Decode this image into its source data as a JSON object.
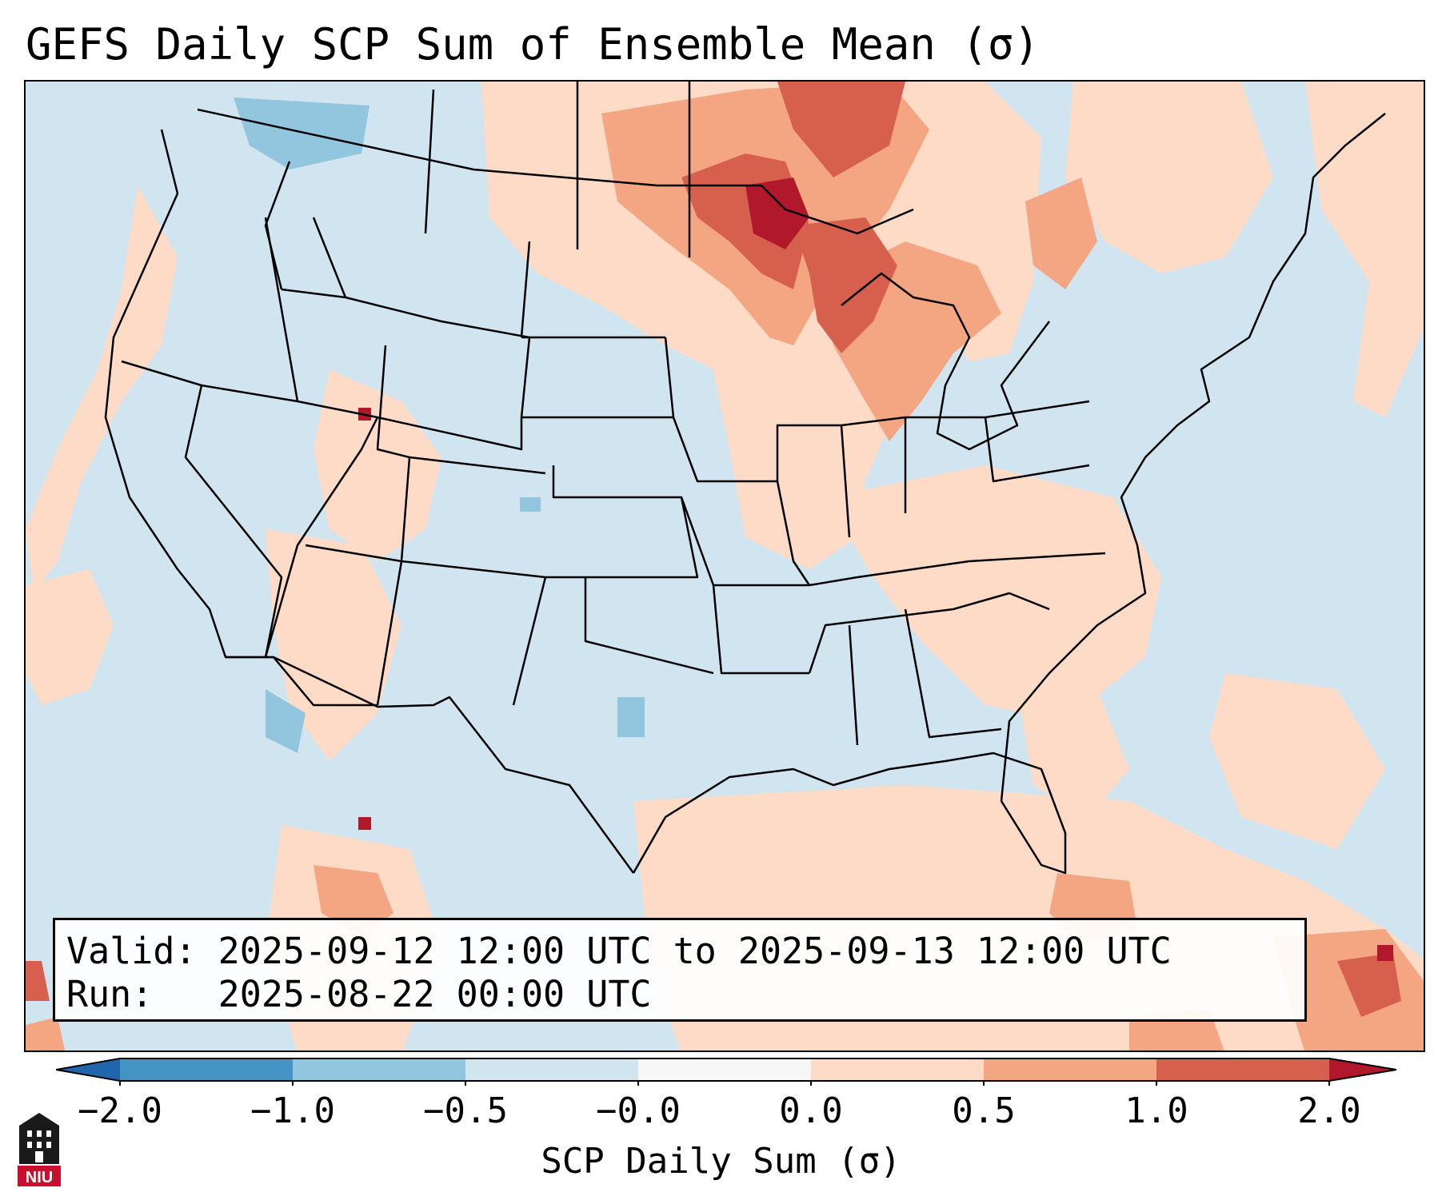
{
  "title": "GEFS Daily SCP Sum of Ensemble Mean (σ)",
  "info_box": {
    "valid_label": "Valid:",
    "valid_value": "2025-09-12 12:00 UTC to 2025-09-13 12:00 UTC",
    "run_label": "Run:",
    "run_value": "2025-08-22 00:00 UTC"
  },
  "colorbar": {
    "label": "SCP Daily Sum (σ)",
    "ticks": [
      "−2.0",
      "−1.0",
      "−0.5",
      "−0.0",
      "0.0",
      "0.5",
      "1.0",
      "2.0"
    ],
    "colors": {
      "lt_-2": "#2166ac",
      "-2_-1": "#4393c3",
      "-1_-0.5": "#92c5de",
      "-0.5_0": "#d1e5f0",
      "0_0.5": "#fddbc7",
      "0.5_1": "#f4a582",
      "1_2": "#d6604d",
      "gt_2": "#b2182b"
    }
  },
  "logo": {
    "text": "NIU",
    "icon": "niu-university-logo-icon"
  },
  "map": {
    "background_category": "-0.5_0",
    "land_color": "#d1e5f0",
    "border_color": "#000000"
  }
}
